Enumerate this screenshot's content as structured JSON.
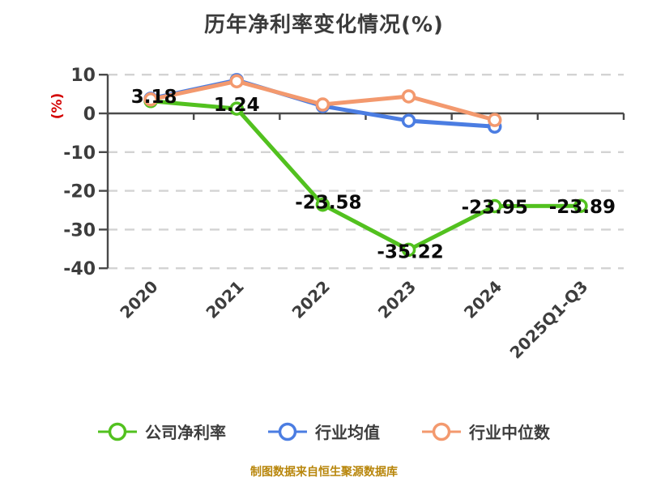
{
  "footer": {
    "source_note": "制图数据来自恒生聚源数据库"
  },
  "colors": {
    "company_series": "#52c11f",
    "industry_avg_series": "#4b7de2",
    "industry_median_series": "#f3996e",
    "axis": "#4a4a4a",
    "grid": "#d3d3d3",
    "tick_text": "#3d3d3d",
    "point_label_text": "#0a0a0a",
    "title_text": "#3b3b3b",
    "y_unit_label": "#d40000",
    "source_note": "#b8860b"
  },
  "chart_data": {
    "type": "line",
    "title": "历年净利率变化情况(%)",
    "ylabel": "(%)",
    "xlabel": "",
    "categories": [
      "2020",
      "2021",
      "2022",
      "2023",
      "2024",
      "2025Q1-Q3"
    ],
    "ylim": [
      -40,
      10
    ],
    "yticks": [
      10,
      0,
      -10,
      -20,
      -30,
      -40
    ],
    "grid": "horizontal-dashed",
    "legend_position": "bottom",
    "series": [
      {
        "name": "公司净利率",
        "color": "#52c11f",
        "values": [
          3.18,
          1.24,
          -23.58,
          -35.22,
          -23.95,
          -23.89
        ],
        "point_labels": [
          "3.18",
          "1.24",
          "-23.58",
          "-35.22",
          "-23.95",
          "-23.89"
        ],
        "label_offsets": [
          [
            4,
            -6
          ],
          [
            0,
            -5
          ],
          [
            7,
            -3
          ],
          [
            2,
            2
          ],
          [
            0,
            1
          ],
          [
            2,
            1
          ]
        ]
      },
      {
        "name": "行业均值",
        "color": "#4b7de2",
        "values": [
          3.8,
          8.6,
          1.9,
          -1.9,
          -3.4,
          null
        ]
      },
      {
        "name": "行业中位数",
        "color": "#f3996e",
        "values": [
          3.6,
          8.3,
          2.3,
          4.4,
          -1.7,
          null
        ]
      }
    ]
  }
}
